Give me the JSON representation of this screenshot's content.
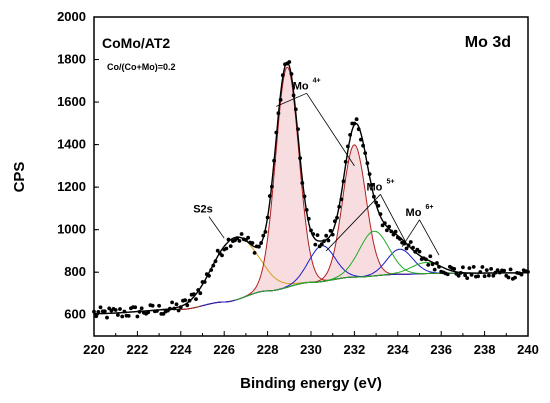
{
  "chart_data": {
    "type": "line",
    "title": "Mo 3d",
    "sample_label": "CoMo/AT2",
    "ratio_label": "Co/(Co+Mo)=0.2",
    "xlabel": "Binding energy (eV)",
    "ylabel": "CPS",
    "xlim": [
      220,
      240
    ],
    "ylim": [
      500,
      2000
    ],
    "x_ticks": [
      220,
      222,
      224,
      226,
      228,
      230,
      232,
      234,
      236,
      238,
      240
    ],
    "y_ticks": [
      600,
      800,
      1000,
      1200,
      1400,
      1600,
      1800,
      2000
    ],
    "grid": false,
    "baseline": {
      "x": [
        220,
        224,
        226,
        228,
        230,
        232,
        234,
        236,
        240
      ],
      "y": [
        605,
        625,
        660,
        712,
        752,
        777,
        790,
        795,
        797
      ]
    },
    "components": [
      {
        "label": "S2s",
        "color": "#d4a020",
        "center": 226.5,
        "height": 295,
        "fwhm": 2.4
      },
      {
        "label": "Mo4+ 3d5/2",
        "color": "#b02020",
        "center": 228.9,
        "height": 1035,
        "fwhm": 1.25
      },
      {
        "label": "Mo4+ 3d3/2",
        "color": "#b02020",
        "center": 232.0,
        "height": 622,
        "fwhm": 1.25
      },
      {
        "label": "Mo5+ 3d5/2",
        "color": "#1c1cc8",
        "center": 230.5,
        "height": 168,
        "fwhm": 1.4
      },
      {
        "label": "Mo5+ 3d3/2",
        "color": "#1c1cc8",
        "center": 234.1,
        "height": 118,
        "fwhm": 1.4
      },
      {
        "label": "Mo6+ 3d5/2",
        "color": "#22aa22",
        "center": 232.9,
        "height": 210,
        "fwhm": 1.6
      },
      {
        "label": "Mo6+ 3d3/2",
        "color": "#22aa22",
        "center": 235.3,
        "height": 52,
        "fwhm": 1.6
      }
    ],
    "annotations": [
      {
        "text": "S2s",
        "sup": "",
        "x": 225.3,
        "y": 1080,
        "targets": [
          [
            226.0,
            960
          ]
        ]
      },
      {
        "text": "Mo",
        "sup": "4+",
        "x": 229.8,
        "y": 1660,
        "targets": [
          [
            228.4,
            1580
          ],
          [
            232.0,
            1300
          ]
        ]
      },
      {
        "text": "Mo",
        "sup": "5+",
        "x": 233.2,
        "y": 1185,
        "targets": [
          [
            230.7,
            900
          ],
          [
            234.5,
            915
          ]
        ]
      },
      {
        "text": "Mo",
        "sup": "6+",
        "x": 235.0,
        "y": 1065,
        "targets": [
          [
            234.2,
            920
          ],
          [
            235.9,
            880
          ]
        ]
      }
    ]
  }
}
